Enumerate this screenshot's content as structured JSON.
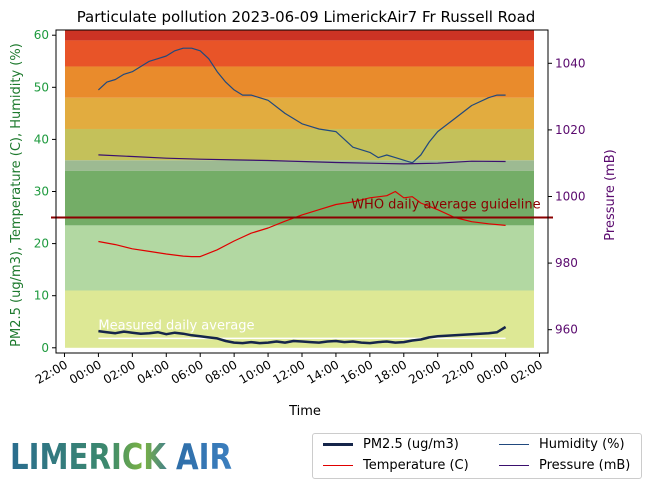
{
  "chart_data": {
    "type": "line",
    "title": "Particulate pollution 2023-06-09 LimerickAir7 Fr Russell Road",
    "xlabel": "Time",
    "ylabel": "PM2.5 (ug/m3), Temperature (C), Humidity (%)",
    "ylabel_right": "Pressure (mB)",
    "x_ticks": [
      "22:00",
      "00:00",
      "02:00",
      "04:00",
      "06:00",
      "08:00",
      "10:00",
      "12:00",
      "14:00",
      "16:00",
      "18:00",
      "20:00",
      "22:00",
      "00:00",
      "02:00"
    ],
    "xlim_hours": [
      -2.5,
      26.5
    ],
    "ylim": [
      -1,
      61
    ],
    "y_ticks": [
      0,
      10,
      20,
      30,
      40,
      50,
      60
    ],
    "ylim_right": [
      953,
      1050
    ],
    "y_ticks_right": [
      960,
      980,
      1000,
      1020,
      1040
    ],
    "bands": [
      {
        "from": 0,
        "to": 11,
        "color": "#dde895"
      },
      {
        "from": 11,
        "to": 23.5,
        "color": "#b2d8a2"
      },
      {
        "from": 23.5,
        "to": 34,
        "color": "#74ad67"
      },
      {
        "from": 34,
        "to": 36,
        "color": "#9dba92"
      },
      {
        "from": 36,
        "to": 42,
        "color": "#c4c15a"
      },
      {
        "from": 42,
        "to": 48,
        "color": "#e2ac3f"
      },
      {
        "from": 48,
        "to": 54,
        "color": "#e98b2c"
      },
      {
        "from": 54,
        "to": 59,
        "color": "#e85428"
      },
      {
        "from": 59,
        "to": 61,
        "color": "#cc3324"
      }
    ],
    "guideline": {
      "value": 25,
      "label": "WHO daily average guideline",
      "color": "#8b0000"
    },
    "daily_average": {
      "value": 1.8,
      "label": "Measured daily average",
      "color": "#ffffff"
    },
    "series": [
      {
        "name": "PM2.5 (ug/m3)",
        "color": "#15254a",
        "axis": "left",
        "x": [
          0,
          0.5,
          1,
          1.5,
          2,
          2.5,
          3,
          3.5,
          4,
          4.5,
          5,
          5.5,
          6,
          6.5,
          7,
          7.5,
          8,
          8.5,
          9,
          9.5,
          10,
          10.5,
          11,
          11.5,
          12,
          12.5,
          13,
          13.5,
          14,
          14.5,
          15,
          15.5,
          16,
          16.5,
          17,
          17.5,
          18,
          18.5,
          19,
          19.5,
          20,
          20.5,
          21,
          21.5,
          22,
          22.5,
          23,
          23.5,
          24
        ],
        "y": [
          3.2,
          3.0,
          2.8,
          3.1,
          2.9,
          2.7,
          2.8,
          3.0,
          2.6,
          2.9,
          2.7,
          2.4,
          2.2,
          2.0,
          1.8,
          1.3,
          1.0,
          0.9,
          1.1,
          0.9,
          1.0,
          1.2,
          1.0,
          1.3,
          1.2,
          1.1,
          1.0,
          1.2,
          1.3,
          1.1,
          1.2,
          1.0,
          0.9,
          1.1,
          1.2,
          1.0,
          1.1,
          1.4,
          1.6,
          2.0,
          2.2,
          2.3,
          2.4,
          2.5,
          2.6,
          2.7,
          2.8,
          3.0,
          4.0
        ]
      },
      {
        "name": "Temperature (C)",
        "color": "#e00000",
        "axis": "left",
        "x": [
          0,
          1,
          2,
          3,
          4,
          5,
          5.5,
          6,
          7,
          8,
          9,
          10,
          11,
          12,
          13,
          14,
          15,
          16,
          17,
          17.5,
          18,
          18.5,
          19,
          20,
          21,
          22,
          23,
          24
        ],
        "y": [
          20.4,
          19.8,
          19.0,
          18.5,
          18.0,
          17.6,
          17.5,
          17.5,
          18.8,
          20.5,
          22.0,
          23.0,
          24.3,
          25.5,
          26.5,
          27.5,
          28.0,
          28.8,
          29.2,
          30.0,
          28.8,
          29.0,
          27.8,
          26.5,
          25.0,
          24.2,
          23.8,
          23.5
        ]
      },
      {
        "name": "Humidity (%)",
        "color": "#21497e",
        "axis": "left",
        "x": [
          0,
          0.5,
          1,
          1.5,
          2,
          2.5,
          3,
          3.5,
          4,
          4.5,
          5,
          5.5,
          6,
          6.5,
          7,
          7.5,
          8,
          8.5,
          9,
          9.5,
          10,
          11,
          12,
          13,
          14,
          15,
          16,
          16.5,
          17,
          17.5,
          18,
          18.5,
          19,
          19.5,
          20,
          21,
          22,
          23,
          23.5,
          24
        ],
        "y": [
          49.5,
          51,
          51.5,
          52.5,
          53,
          54,
          55,
          55.5,
          56,
          57,
          57.5,
          57.5,
          57,
          55.5,
          53,
          51,
          49.5,
          48.5,
          48.5,
          48,
          47.5,
          45,
          43,
          42,
          41.5,
          38.5,
          37.5,
          36.5,
          37,
          36.5,
          36,
          35.5,
          37,
          39.5,
          41.5,
          44,
          46.5,
          48,
          48.5,
          48.5
        ]
      }
    ],
    "pressure_series": {
      "name": "Pressure (mB)",
      "color": "#3a0f6e",
      "axis": "right",
      "x": [
        0,
        2,
        4,
        6,
        8,
        10,
        12,
        14,
        16,
        18,
        20,
        22,
        24
      ],
      "y": [
        1012.5,
        1012,
        1011.5,
        1011.2,
        1011,
        1010.8,
        1010.5,
        1010.2,
        1010,
        1009.8,
        1010,
        1010.6,
        1010.5
      ]
    }
  },
  "legend": {
    "items": [
      {
        "label": "PM2.5 (ug/m3)"
      },
      {
        "label": "Humidity (%)"
      },
      {
        "label": "Temperature (C)"
      },
      {
        "label": "Pressure (mB)"
      }
    ]
  },
  "logo": {
    "text": "LIMERICK AIR"
  }
}
